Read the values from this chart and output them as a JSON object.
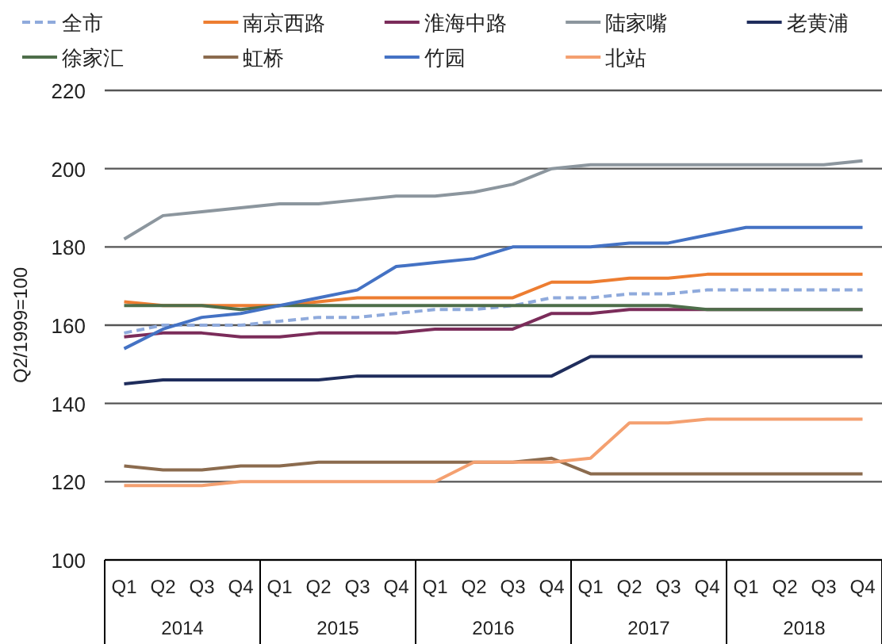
{
  "chart_data": {
    "type": "line",
    "ylabel": "Q2/1999=100",
    "categories": [
      "Q1",
      "Q2",
      "Q3",
      "Q4",
      "Q1",
      "Q2",
      "Q3",
      "Q4",
      "Q1",
      "Q2",
      "Q3",
      "Q4",
      "Q1",
      "Q2",
      "Q3",
      "Q4",
      "Q1",
      "Q2",
      "Q3",
      "Q4"
    ],
    "annotations": [
      "2014",
      "2015",
      "2016",
      "2017",
      "2018"
    ],
    "ylim": [
      100,
      220
    ],
    "yticks": [
      100,
      120,
      140,
      160,
      180,
      200,
      220
    ],
    "grid": "y",
    "legend": "top",
    "marker": "none",
    "series": [
      {
        "name": "全市",
        "color": "#8faadc",
        "line_style": "dashed",
        "values": [
          158,
          160,
          160,
          160,
          161,
          162,
          162,
          163,
          164,
          164,
          165,
          167,
          167,
          168,
          168,
          169,
          169,
          169,
          169,
          169
        ]
      },
      {
        "name": "南京西路",
        "color": "#ed7d31",
        "values": [
          166,
          165,
          165,
          165,
          165,
          166,
          167,
          167,
          167,
          167,
          167,
          171,
          171,
          172,
          172,
          173,
          173,
          173,
          173,
          173
        ]
      },
      {
        "name": "淮海中路",
        "color": "#7b2c5a",
        "values": [
          157,
          158,
          158,
          157,
          157,
          158,
          158,
          158,
          159,
          159,
          159,
          163,
          163,
          164,
          164,
          164,
          164,
          164,
          164,
          164
        ]
      },
      {
        "name": "陆家嘴",
        "color": "#8c969e",
        "values": [
          182,
          188,
          189,
          190,
          191,
          191,
          192,
          193,
          193,
          194,
          196,
          200,
          201,
          201,
          201,
          201,
          201,
          201,
          201,
          202
        ]
      },
      {
        "name": "老黄浦",
        "color": "#1f2d5c",
        "values": [
          145,
          146,
          146,
          146,
          146,
          146,
          147,
          147,
          147,
          147,
          147,
          147,
          152,
          152,
          152,
          152,
          152,
          152,
          152,
          152
        ]
      },
      {
        "name": "徐家汇",
        "color": "#4e6e4a",
        "values": [
          165,
          165,
          165,
          164,
          165,
          165,
          165,
          165,
          165,
          165,
          165,
          165,
          165,
          165,
          165,
          164,
          164,
          164,
          164,
          164
        ]
      },
      {
        "name": "虹桥",
        "color": "#8b6b4e",
        "values": [
          124,
          123,
          123,
          124,
          124,
          125,
          125,
          125,
          125,
          125,
          125,
          126,
          122,
          122,
          122,
          122,
          122,
          122,
          122,
          122
        ]
      },
      {
        "name": "竹园",
        "color": "#4472c4",
        "values": [
          154,
          159,
          162,
          163,
          165,
          167,
          169,
          175,
          176,
          177,
          180,
          180,
          180,
          181,
          181,
          183,
          185,
          185,
          185,
          185
        ]
      },
      {
        "name": "北站",
        "color": "#f4a070",
        "values": [
          119,
          119,
          119,
          120,
          120,
          120,
          120,
          120,
          120,
          125,
          125,
          125,
          126,
          135,
          135,
          136,
          136,
          136,
          136,
          136
        ]
      }
    ]
  }
}
